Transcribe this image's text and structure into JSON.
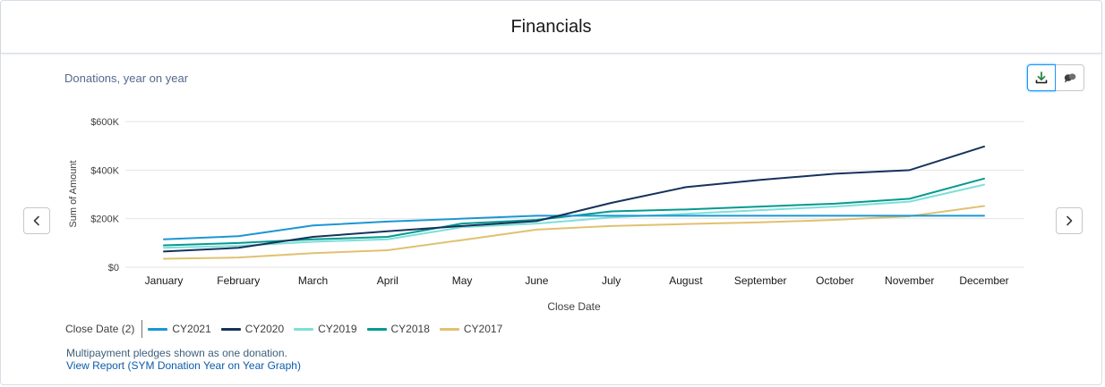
{
  "card": {
    "title": "Financials"
  },
  "subtitle": "Donations, year on year",
  "icons": {
    "download": "download-icon",
    "feed": "chat-bubbles-icon",
    "prev": "chevron-left-icon",
    "next": "chevron-right-icon"
  },
  "legend": {
    "title": "Close Date (2)"
  },
  "footnote": "Multipayment pledges shown as one donation.",
  "report_link": "View Report (SYM Donation Year on Year Graph)",
  "chart_data": {
    "type": "line",
    "title": "",
    "xlabel": "Close Date",
    "ylabel": "Sum of Amount",
    "ylim": [
      0,
      600000
    ],
    "yticks": [
      0,
      200000,
      400000,
      600000
    ],
    "ytick_labels": [
      "$0",
      "$200K",
      "$400K",
      "$600K"
    ],
    "grid": true,
    "legend_position": "bottom-left",
    "categories": [
      "January",
      "February",
      "March",
      "April",
      "May",
      "June",
      "July",
      "August",
      "September",
      "October",
      "November",
      "December"
    ],
    "series": [
      {
        "name": "CY2021",
        "color": "#1b96d4",
        "values": [
          115000,
          128000,
          172000,
          188000,
          200000,
          212000,
          212000,
          212000,
          212000,
          212000,
          212000,
          212000
        ]
      },
      {
        "name": "CY2020",
        "color": "#16325c",
        "values": [
          65000,
          80000,
          125000,
          148000,
          170000,
          190000,
          265000,
          330000,
          360000,
          385000,
          400000,
          497000
        ]
      },
      {
        "name": "CY2019",
        "color": "#7ddfd9",
        "values": [
          80000,
          88000,
          105000,
          115000,
          165000,
          180000,
          205000,
          220000,
          235000,
          250000,
          270000,
          340000
        ]
      },
      {
        "name": "CY2018",
        "color": "#049a8f",
        "values": [
          90000,
          100000,
          115000,
          125000,
          180000,
          195000,
          230000,
          238000,
          250000,
          262000,
          282000,
          365000
        ]
      },
      {
        "name": "CY2017",
        "color": "#e0c170",
        "values": [
          35000,
          40000,
          58000,
          70000,
          112000,
          155000,
          170000,
          178000,
          185000,
          195000,
          210000,
          252000
        ]
      }
    ]
  }
}
